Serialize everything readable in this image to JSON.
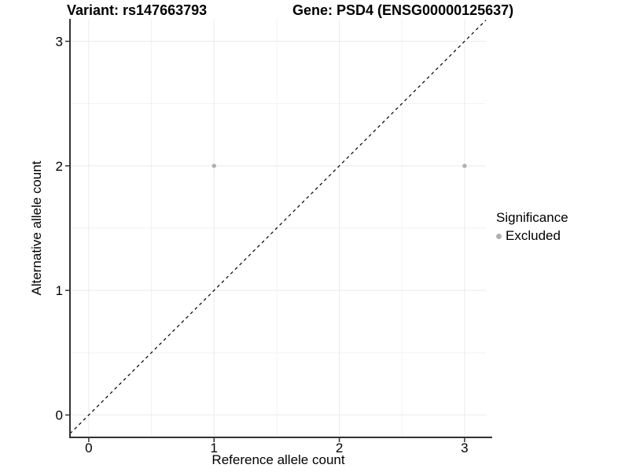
{
  "chart_data": {
    "type": "scatter",
    "title_left": "Variant: rs147663793",
    "title_right": "Gene: PSD4 (ENSG00000125637)",
    "xlabel": "Reference allele count",
    "ylabel": "Alternative allele count",
    "xlim": [
      -0.15,
      3.17
    ],
    "ylim": [
      -0.18,
      3.18
    ],
    "x_ticks": [
      0,
      1,
      2,
      3
    ],
    "y_ticks": [
      0,
      1,
      2,
      3
    ],
    "minor_ticks_x": [
      0.5,
      1.5,
      2.5
    ],
    "minor_ticks_y": [
      0.5,
      1.5,
      2.5
    ],
    "grid": true,
    "identity_line": {
      "style": "dashed",
      "color": "#000000",
      "from": -0.15,
      "to": 3.17
    },
    "series": [
      {
        "name": "Excluded",
        "color": "#b0b0b0",
        "points": [
          {
            "x": 1,
            "y": 2
          },
          {
            "x": 3,
            "y": 2
          }
        ]
      }
    ],
    "legend": {
      "title": "Significance",
      "position": "right",
      "items": [
        {
          "label": "Excluded",
          "color": "#b0b0b0"
        }
      ]
    },
    "colors": {
      "gridline_major": "#ebebeb",
      "gridline_minor": "#f2f2f2",
      "axis_line": "#333333",
      "tick_text": "#000000"
    }
  }
}
